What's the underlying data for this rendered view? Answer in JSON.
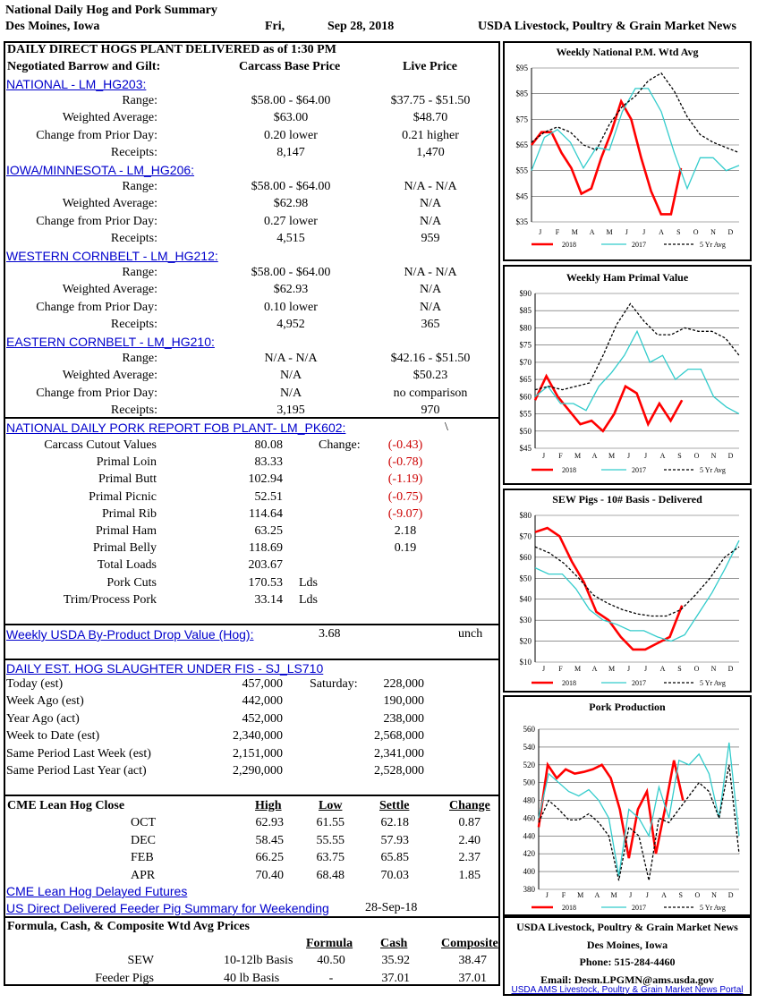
{
  "header": {
    "title": "National Daily Hog and Pork Summary",
    "location": "Des Moines, Iowa",
    "day": "Fri,",
    "date": "Sep 28, 2018",
    "agency": "USDA Livestock, Poultry & Grain Market News"
  },
  "hogs": {
    "title": "DAILY DIRECT HOGS PLANT DELIVERED as of 1:30 PM",
    "subtitle": "Negotiated Barrow and Gilt:",
    "col_carcass": "Carcass Base Price",
    "col_live": "Live Price",
    "row_labels": [
      "Range:",
      "Weighted Average:",
      "Change from Prior Day:",
      "Receipts:"
    ],
    "regions": [
      {
        "name": "NATIONAL - LM_HG203:",
        "carcass": [
          "$58.00  -  $64.00",
          "$63.00",
          "0.20 lower",
          "8,147"
        ],
        "live": [
          "$37.75  -  $51.50",
          "$48.70",
          "0.21 higher",
          "1,470"
        ]
      },
      {
        "name": "IOWA/MINNESOTA - LM_HG206:",
        "carcass": [
          "$58.00  -  $64.00",
          "$62.98",
          "0.27 lower",
          "4,515"
        ],
        "live": [
          "N/A  -  N/A",
          "N/A",
          "N/A",
          "959"
        ]
      },
      {
        "name": "WESTERN CORNBELT - LM_HG212:",
        "carcass": [
          "$58.00  -  $64.00",
          "$62.93",
          "0.10 lower",
          "4,952"
        ],
        "live": [
          "N/A  -  N/A",
          "N/A",
          "N/A",
          "365"
        ]
      },
      {
        "name": "EASTERN CORNBELT - LM_HG210:",
        "carcass": [
          "N/A  -  N/A",
          "N/A",
          "N/A",
          "3,195"
        ],
        "live": [
          "$42.16  -  $51.50",
          "$50.23",
          "no comparison",
          "970"
        ]
      }
    ]
  },
  "pork": {
    "title": "NATIONAL DAILY PORK REPORT FOB PLANT- LM_PK602:",
    "backslash": "\\",
    "change_label": "Change:",
    "rows": [
      {
        "label": "Carcass Cutout Values",
        "value": "80.08",
        "change": "(-0.43)",
        "neg": true
      },
      {
        "label": "Primal Loin",
        "value": "83.33",
        "change": "(-0.78)",
        "neg": true
      },
      {
        "label": "Primal Butt",
        "value": "102.94",
        "change": "(-1.19)",
        "neg": true
      },
      {
        "label": "Primal Picnic",
        "value": "52.51",
        "change": "(-0.75)",
        "neg": true
      },
      {
        "label": "Primal Rib",
        "value": "114.64",
        "change": "(-9.07)",
        "neg": true
      },
      {
        "label": "Primal Ham",
        "value": "63.25",
        "change": "2.18",
        "neg": false
      },
      {
        "label": "Primal Belly",
        "value": "118.69",
        "change": "0.19",
        "neg": false
      },
      {
        "label": "Total Loads",
        "value": "203.67",
        "change": "",
        "neg": false
      },
      {
        "label": "Pork Cuts",
        "value": "170.53",
        "unit": "Lds",
        "change": "",
        "neg": false
      },
      {
        "label": "Trim/Process Pork",
        "value": "33.14",
        "unit": "Lds",
        "change": "",
        "neg": false
      }
    ]
  },
  "byproduct": {
    "label": "Weekly USDA By-Product Drop Value (Hog):",
    "value": "3.68",
    "status": "unch"
  },
  "slaughter": {
    "title": "DAILY EST. HOG SLAUGHTER UNDER FIS - SJ_LS710",
    "saturday_label": "Saturday:",
    "rows": [
      {
        "label": "Today (est)",
        "value": "457,000",
        "sat": "228,000"
      },
      {
        "label": "Week Ago (est)",
        "value": "442,000",
        "sat": "190,000"
      },
      {
        "label": "Year Ago (act)",
        "value": "452,000",
        "sat": "238,000"
      },
      {
        "label": "Week to Date (est)",
        "value": "2,340,000",
        "sat": "2,568,000"
      },
      {
        "label": "Same Period Last Week (est)",
        "value": "2,151,000",
        "sat": "2,341,000"
      },
      {
        "label": "Same Period Last Year (act)",
        "value": "2,290,000",
        "sat": "2,528,000"
      }
    ]
  },
  "cme": {
    "title": "CME Lean Hog Close",
    "headers": [
      "High",
      "Low",
      "Settle",
      "Change"
    ],
    "rows": [
      {
        "month": "OCT",
        "high": "62.93",
        "low": "61.55",
        "settle": "62.18",
        "change": "0.87"
      },
      {
        "month": "DEC",
        "high": "58.45",
        "low": "55.55",
        "settle": "57.93",
        "change": "2.40"
      },
      {
        "month": "FEB",
        "high": "66.25",
        "low": "63.75",
        "settle": "65.85",
        "change": "2.37"
      },
      {
        "month": "APR",
        "high": "70.40",
        "low": "68.48",
        "settle": "70.03",
        "change": "1.85"
      }
    ],
    "link": "CME Lean Hog Delayed Futures"
  },
  "feeder": {
    "link": "US Direct Delivered Feeder Pig Summary for Weekending",
    "date": "28-Sep-18",
    "title": "Formula, Cash, & Composite Wtd Avg Prices",
    "headers": [
      "Formula",
      "Cash",
      "Composite"
    ],
    "rows": [
      {
        "label": "SEW",
        "basis": "10-12lb Basis",
        "formula": "40.50",
        "cash": "35.92",
        "composite": "38.47"
      },
      {
        "label": "Feeder Pigs",
        "basis": "40 lb Basis",
        "formula": "-",
        "cash": "37.01",
        "composite": "37.01"
      }
    ]
  },
  "contact": {
    "agency": "USDA Livestock, Poultry & Grain Market News",
    "city": "Des Moines, Iowa",
    "phone": "Phone:  515-284-4460",
    "email": "Email:  Desm.LPGMN@ams.usda.gov",
    "portal": "USDA AMS Livestock, Poultry & Grain Market News Portal"
  },
  "colors": {
    "y2018": "#ff0000",
    "y2017": "#33cccc",
    "avg": "#000000"
  },
  "chart_data": [
    {
      "type": "line",
      "title": "Weekly National P.M. Wtd Avg",
      "ylim": [
        35,
        95
      ],
      "yticks": [
        "$35",
        "$45",
        "$55",
        "$65",
        "$75",
        "$85",
        "$95"
      ],
      "yvals": [
        35,
        45,
        55,
        65,
        75,
        85,
        95
      ],
      "xlabels": [
        "J",
        "F",
        "M",
        "A",
        "M",
        "J",
        "J",
        "A",
        "S",
        "O",
        "N",
        "D"
      ],
      "series": [
        {
          "name": "2018",
          "values": [
            65,
            70,
            70,
            62,
            56,
            46,
            48,
            60,
            70,
            82,
            75,
            60,
            47,
            38,
            38,
            56
          ]
        },
        {
          "name": "2017",
          "values": [
            55,
            68,
            71,
            66,
            56,
            64,
            63,
            78,
            87,
            87,
            78,
            62,
            48,
            60,
            60,
            55,
            57
          ]
        },
        {
          "name": "5 Yr Avg",
          "values": [
            66,
            70,
            72,
            70,
            65,
            63,
            73,
            80,
            84,
            90,
            93,
            86,
            76,
            69,
            66,
            64,
            62
          ]
        }
      ]
    },
    {
      "type": "line",
      "title": "Weekly Ham Primal Value",
      "ylim": [
        45,
        90
      ],
      "yticks": [
        "$45",
        "$50",
        "$55",
        "$60",
        "$65",
        "$70",
        "$75",
        "$80",
        "$85",
        "$90"
      ],
      "yvals": [
        45,
        50,
        55,
        60,
        65,
        70,
        75,
        80,
        85,
        90
      ],
      "xlabels": [
        "J",
        "F",
        "M",
        "A",
        "M",
        "J",
        "J",
        "A",
        "S",
        "O",
        "N",
        "D"
      ],
      "series": [
        {
          "name": "2018",
          "values": [
            59,
            66,
            60,
            56,
            52,
            53,
            50,
            55,
            63,
            61,
            52,
            58,
            53,
            59
          ]
        },
        {
          "name": "2017",
          "values": [
            60,
            63,
            58,
            58,
            56,
            63,
            67,
            72,
            79,
            70,
            72,
            65,
            68,
            68,
            60,
            57,
            55
          ]
        },
        {
          "name": "5 Yr Avg",
          "values": [
            62,
            63,
            62,
            63,
            64,
            72,
            81,
            87,
            82,
            78,
            78,
            80,
            79,
            79,
            77,
            72
          ]
        }
      ]
    },
    {
      "type": "line",
      "title": "SEW Pigs - 10# Basis - Delivered",
      "ylim": [
        10,
        80
      ],
      "yticks": [
        "$10",
        "$20",
        "$30",
        "$40",
        "$50",
        "$60",
        "$70",
        "$80"
      ],
      "yvals": [
        10,
        20,
        30,
        40,
        50,
        60,
        70,
        80
      ],
      "xlabels": [
        "J",
        "F",
        "M",
        "A",
        "M",
        "J",
        "J",
        "A",
        "S",
        "O",
        "N",
        "D"
      ],
      "series": [
        {
          "name": "2018",
          "values": [
            72,
            74,
            70,
            58,
            48,
            34,
            30,
            22,
            16,
            16,
            19,
            22,
            37
          ]
        },
        {
          "name": "2017",
          "values": [
            55,
            52,
            52,
            45,
            35,
            30,
            28,
            25,
            25,
            22,
            20,
            23,
            33,
            43,
            55,
            68
          ]
        },
        {
          "name": "5 Yr Avg",
          "values": [
            65,
            62,
            57,
            50,
            42,
            38,
            35,
            33,
            32,
            32,
            35,
            42,
            50,
            60,
            65
          ]
        }
      ]
    },
    {
      "type": "line",
      "title": "Pork Production",
      "ylim": [
        380,
        560
      ],
      "yticks": [
        "380",
        "400",
        "420",
        "440",
        "460",
        "480",
        "500",
        "520",
        "540",
        "560"
      ],
      "yvals": [
        380,
        400,
        420,
        440,
        460,
        480,
        500,
        520,
        540,
        560
      ],
      "xlabels": [
        "J",
        "F",
        "M",
        "A",
        "M",
        "J",
        "J",
        "A",
        "S",
        "O",
        "N",
        "D"
      ],
      "series": [
        {
          "name": "2018",
          "values": [
            450,
            520,
            505,
            515,
            510,
            512,
            515,
            520,
            505,
            470,
            415,
            470,
            490,
            420,
            470,
            525,
            480
          ]
        },
        {
          "name": "2017",
          "values": [
            460,
            510,
            500,
            490,
            485,
            492,
            480,
            460,
            395,
            470,
            460,
            440,
            495,
            460,
            525,
            520,
            532,
            510,
            460,
            545,
            440
          ]
        },
        {
          "name": "5 Yr Avg",
          "values": [
            455,
            480,
            470,
            458,
            458,
            465,
            455,
            440,
            390,
            450,
            440,
            390,
            460,
            455,
            470,
            485,
            500,
            490,
            460,
            520,
            420
          ]
        }
      ]
    }
  ],
  "legend": {
    "y2018": "2018",
    "y2017": "2017",
    "avg": "5 Yr Avg"
  }
}
